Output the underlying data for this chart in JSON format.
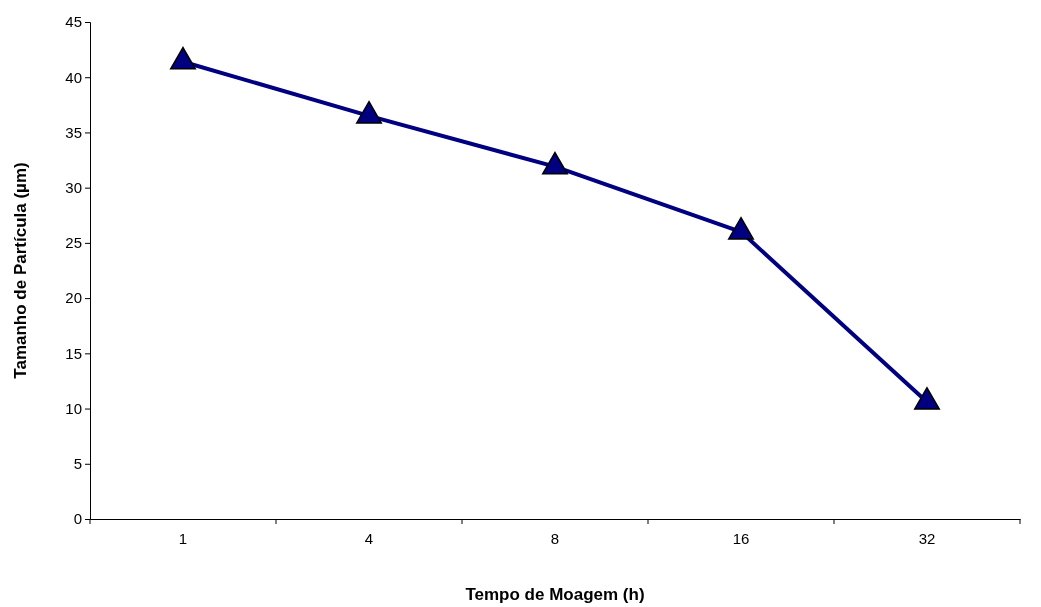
{
  "chart_data": {
    "type": "line",
    "xlabel": "Tempo de Moagem (h)",
    "ylabel": "Tamanho de Partícula (µm)",
    "categories": [
      "1",
      "4",
      "8",
      "16",
      "32"
    ],
    "series": [
      {
        "color": "#000080",
        "values": [
          41.4,
          36.5,
          31.9,
          26.0,
          10.6
        ]
      }
    ],
    "ylim": [
      0,
      45
    ],
    "yticks": [
      0,
      5,
      10,
      15,
      20,
      25,
      30,
      35,
      40,
      45
    ],
    "marker": "triangle",
    "line_style": "solid",
    "grid": false
  }
}
